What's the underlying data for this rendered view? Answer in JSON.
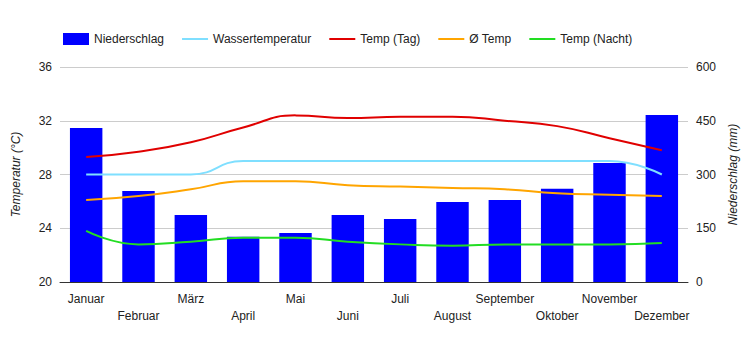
{
  "chart_data": {
    "type": "bar",
    "categories": [
      "Januar",
      "Februar",
      "März",
      "April",
      "Mai",
      "Juni",
      "Juli",
      "August",
      "September",
      "Oktober",
      "November",
      "Dezember"
    ],
    "ylabel": "Temperatur (°C)",
    "y2label": "Niederschlag (mm)",
    "ylim": [
      20,
      36
    ],
    "yticks": [
      20,
      24,
      28,
      32,
      36
    ],
    "y2lim": [
      0,
      600
    ],
    "y2ticks": [
      0,
      150,
      300,
      450,
      600
    ],
    "grid": true,
    "legend": "top",
    "series": [
      {
        "name": "Niederschlag",
        "type": "bar",
        "axis": "y2",
        "color": "#0000ff",
        "values": [
          430,
          254,
          187,
          126,
          137,
          187,
          176,
          223,
          229,
          260,
          332,
          466
        ]
      },
      {
        "name": "Wassertemperatur",
        "type": "line",
        "color": "#7fdfff",
        "line_style": "solid",
        "values": [
          28,
          28,
          28,
          29,
          29,
          29,
          29,
          29,
          29,
          29,
          29,
          28
        ]
      },
      {
        "name": "Temp (Tag)",
        "type": "line",
        "color": "#e00000",
        "line_style": "solid",
        "values": [
          29.3,
          29.7,
          30.4,
          31.5,
          32.4,
          32.2,
          32.3,
          32.3,
          32.0,
          31.6,
          30.7,
          29.8
        ]
      },
      {
        "name": "Ø Temp",
        "type": "line",
        "color": "#ffa500",
        "line_style": "solid",
        "values": [
          26.1,
          26.4,
          26.9,
          27.5,
          27.5,
          27.2,
          27.1,
          27.0,
          26.9,
          26.6,
          26.5,
          26.4
        ]
      },
      {
        "name": "Temp (Nacht)",
        "type": "line",
        "color": "#22dd22",
        "line_style": "solid",
        "values": [
          23.8,
          22.8,
          23.0,
          23.3,
          23.3,
          23.0,
          22.8,
          22.7,
          22.8,
          22.8,
          22.8,
          22.9
        ]
      }
    ]
  }
}
